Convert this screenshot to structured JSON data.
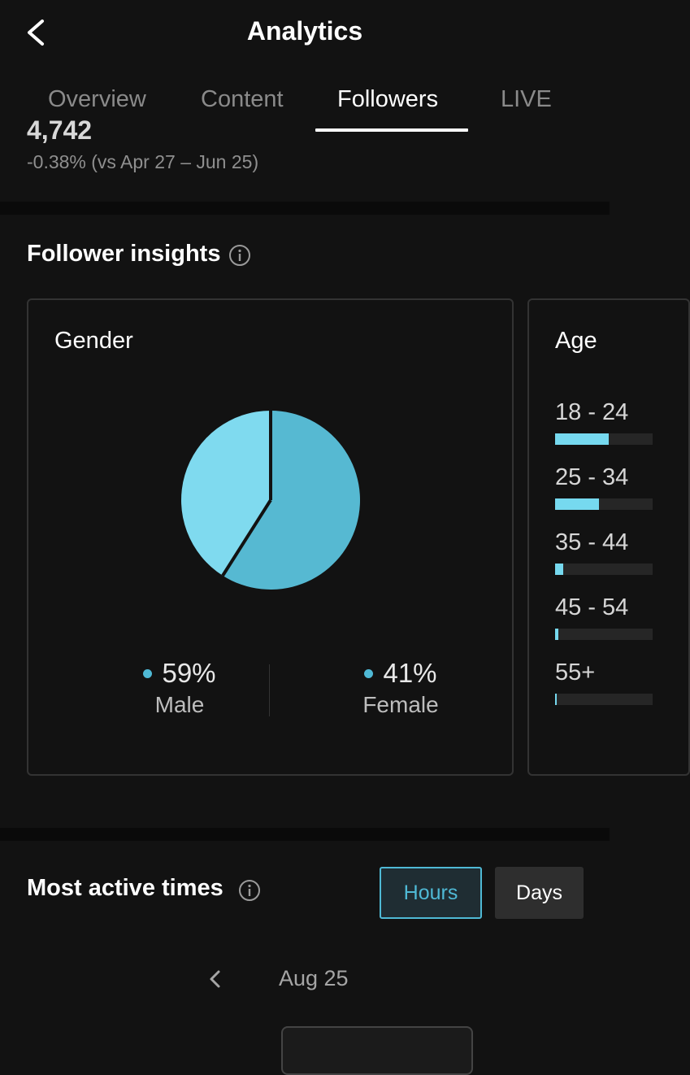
{
  "header": {
    "title": "Analytics"
  },
  "tabs": [
    {
      "label": "Overview",
      "active": false
    },
    {
      "label": "Content",
      "active": false
    },
    {
      "label": "Followers",
      "active": true
    },
    {
      "label": "LIVE",
      "active": false
    }
  ],
  "followers_summary": {
    "count_partial": "4,742",
    "comparison": "-0.38% (vs Apr 27 – Jun 25)"
  },
  "follower_insights": {
    "title": "Follower insights",
    "gender": {
      "title": "Gender",
      "male": {
        "percent": "59%",
        "label": "Male",
        "value": 59,
        "color": "#56b9d2"
      },
      "female": {
        "percent": "41%",
        "label": "Female",
        "value": 41,
        "color": "#7fdaef"
      }
    },
    "age": {
      "title": "Age",
      "groups": [
        {
          "label": "18 - 24",
          "fill": 0.55
        },
        {
          "label": "25 - 34",
          "fill": 0.45
        },
        {
          "label": "35 - 44",
          "fill": 0.08
        },
        {
          "label": "45 - 54",
          "fill": 0.03
        },
        {
          "label": "55+",
          "fill": 0.02
        }
      ]
    }
  },
  "most_active_times": {
    "title": "Most active times",
    "toggle": {
      "hours": "Hours",
      "days": "Days",
      "selected": "Hours"
    },
    "date": "Aug 25"
  },
  "colors": {
    "accent": "#4fb9d5",
    "age_bar": "#76d9ef"
  },
  "chart_data": {
    "type": "pie",
    "categories": [
      "Male",
      "Female"
    ],
    "values": [
      59,
      41
    ]
  }
}
